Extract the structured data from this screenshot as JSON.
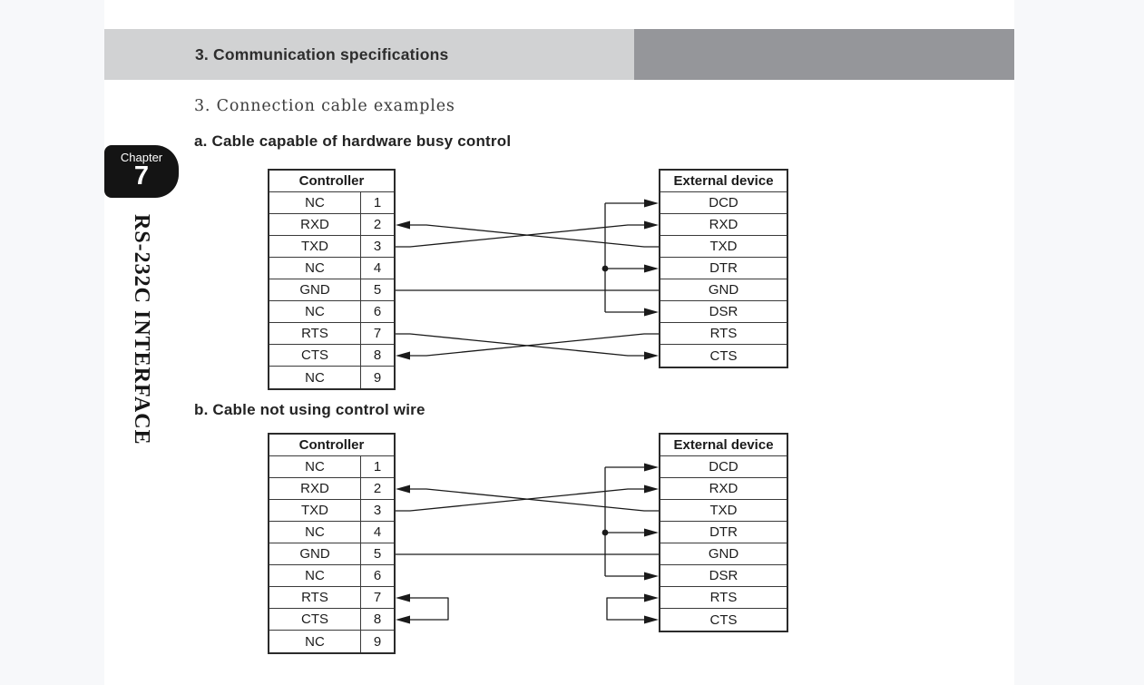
{
  "header": {
    "title": "3. Communication specifications"
  },
  "chapter": {
    "label": "Chapter",
    "number": "7",
    "side_title": "RS-232C INTERFACE"
  },
  "section": {
    "title": "3. Connection cable examples"
  },
  "colors": {
    "bar_light": "#d1d2d3",
    "bar_dark": "#95969a",
    "badge_black": "#141414",
    "wire": "#1a1a1a",
    "table_border": "#2b2b2b"
  },
  "diagrams": [
    {
      "heading": "a. Cable capable of hardware busy control",
      "controller": {
        "title": "Controller",
        "rows": [
          {
            "signal": "NC",
            "pin": "1"
          },
          {
            "signal": "RXD",
            "pin": "2"
          },
          {
            "signal": "TXD",
            "pin": "3"
          },
          {
            "signal": "NC",
            "pin": "4"
          },
          {
            "signal": "GND",
            "pin": "5"
          },
          {
            "signal": "NC",
            "pin": "6"
          },
          {
            "signal": "RTS",
            "pin": "7"
          },
          {
            "signal": "CTS",
            "pin": "8"
          },
          {
            "signal": "NC",
            "pin": "9"
          }
        ]
      },
      "external": {
        "title": "External device",
        "rows": [
          "DCD",
          "RXD",
          "TXD",
          "DTR",
          "GND",
          "DSR",
          "RTS",
          "CTS"
        ]
      },
      "connections": [
        {
          "type": "cross",
          "from_side": "controller",
          "from_row": 2,
          "to_row": 1
        },
        {
          "type": "cross",
          "from_side": "external",
          "from_row": 2,
          "to_row": 1
        },
        {
          "type": "straight",
          "row": 4
        },
        {
          "type": "cross",
          "from_side": "controller",
          "from_row": 6,
          "to_row": 7
        },
        {
          "type": "cross",
          "from_side": "external",
          "from_row": 6,
          "to_row": 7
        },
        {
          "type": "external-jumper",
          "rows": [
            0,
            3,
            5
          ],
          "dot_row": 3
        }
      ]
    },
    {
      "heading": "b. Cable not using control wire",
      "controller": {
        "title": "Controller",
        "rows": [
          {
            "signal": "NC",
            "pin": "1"
          },
          {
            "signal": "RXD",
            "pin": "2"
          },
          {
            "signal": "TXD",
            "pin": "3"
          },
          {
            "signal": "NC",
            "pin": "4"
          },
          {
            "signal": "GND",
            "pin": "5"
          },
          {
            "signal": "NC",
            "pin": "6"
          },
          {
            "signal": "RTS",
            "pin": "7"
          },
          {
            "signal": "CTS",
            "pin": "8"
          },
          {
            "signal": "NC",
            "pin": "9"
          }
        ]
      },
      "external": {
        "title": "External device",
        "rows": [
          "DCD",
          "RXD",
          "TXD",
          "DTR",
          "GND",
          "DSR",
          "RTS",
          "CTS"
        ]
      },
      "connections": [
        {
          "type": "cross",
          "from_side": "controller",
          "from_row": 2,
          "to_row": 1
        },
        {
          "type": "cross",
          "from_side": "external",
          "from_row": 2,
          "to_row": 1
        },
        {
          "type": "straight",
          "row": 4
        },
        {
          "type": "external-jumper",
          "rows": [
            0,
            3,
            5
          ],
          "dot_row": 3
        },
        {
          "type": "controller-jumper",
          "rows": [
            6,
            7
          ]
        },
        {
          "type": "external-bracket",
          "rows": [
            6,
            7
          ]
        }
      ]
    }
  ]
}
